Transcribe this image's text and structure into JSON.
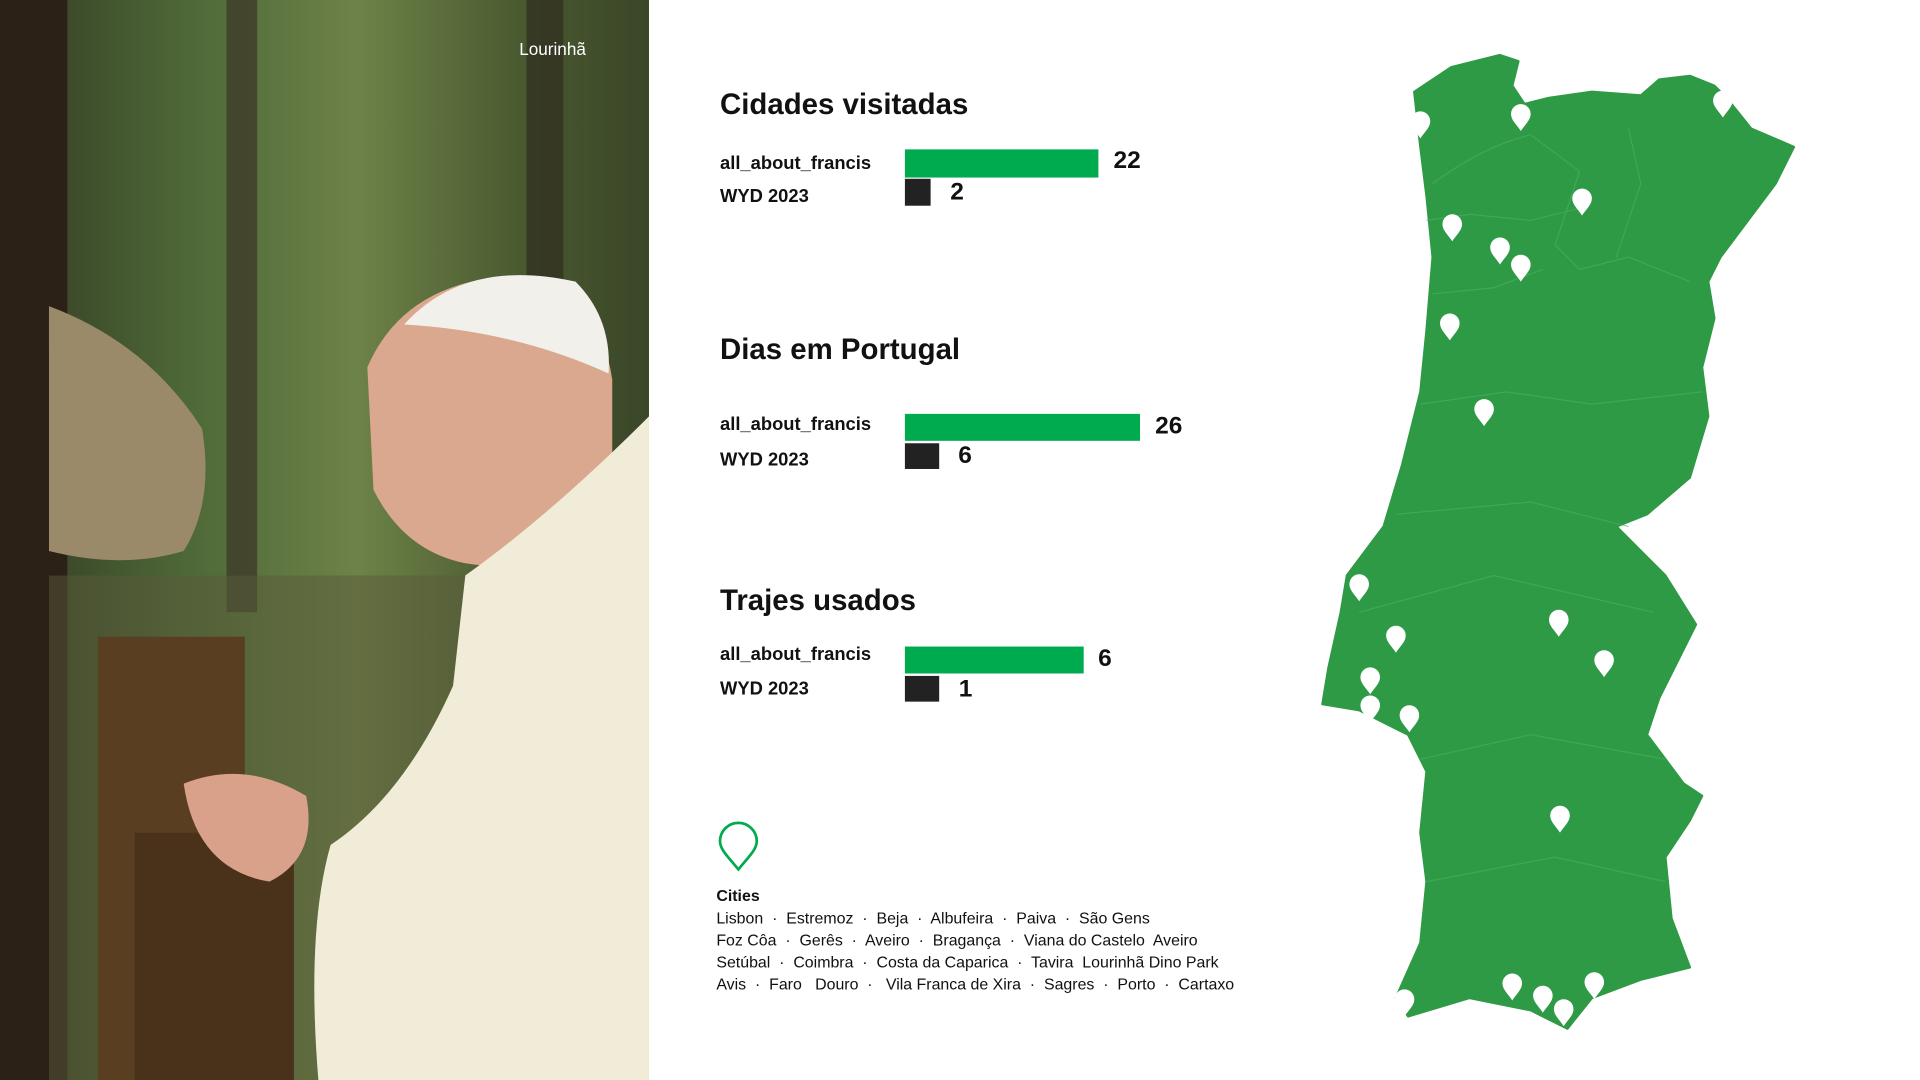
{
  "photo": {
    "caption": "Lourinhã"
  },
  "colors": {
    "primary_bar": "#00aa4f",
    "secondary_bar": "#222222",
    "map": "#2e9a45",
    "pin": "#ffffff"
  },
  "chart_data": [
    {
      "type": "bar",
      "title": "Cidades visitadas",
      "categories": [
        "all_about_francis",
        "WYD 2023"
      ],
      "values": [
        22,
        2
      ]
    },
    {
      "type": "bar",
      "title": "Dias em Portugal",
      "categories": [
        "all_about_francis",
        "WYD 2023"
      ],
      "values": [
        26,
        6
      ]
    },
    {
      "type": "bar",
      "title": "Trajes usados",
      "categories": [
        "all_about_francis",
        "WYD 2023"
      ],
      "values": [
        6,
        1
      ]
    }
  ],
  "legend": {
    "icon": "map-pin-icon",
    "title": "Cities",
    "lines": [
      "Lisbon  ·  Estremoz  ·  Beja  ·  Albufeira  ·  Paiva  ·  São Gens",
      "Foz Côa  ·  Gerês  ·  Aveiro  ·  Bragança  ·  Viana do Castelo  Aveiro",
      "Setúbal  ·  Coimbra  ·  Costa da Caparica  ·  Tavira  Lourinhã Dino Park",
      "Avis  ·  Faro   Douro  ·   Vila Franca de Xira  ·  Sagres  ·  Porto  ·  Cartaxo"
    ]
  },
  "map": {
    "region": "Portugal",
    "pin_icon": "map-pin-icon"
  }
}
